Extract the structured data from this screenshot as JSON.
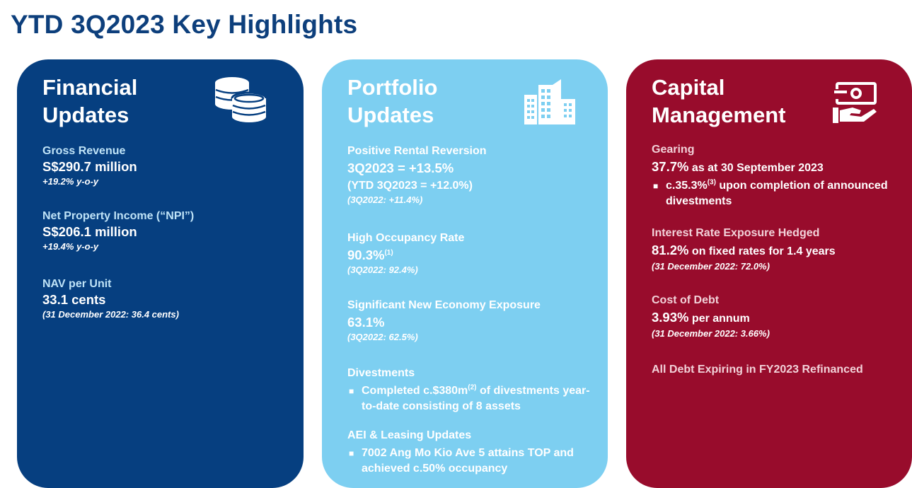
{
  "page_title": "YTD 3Q2023 Key Highlights",
  "financial": {
    "title": "Financial\nUpdates",
    "icon": "coins-icon",
    "color": "#063f80",
    "gross_revenue": {
      "label": "Gross Revenue",
      "value": "S$290.7 million",
      "note": "+19.2% y-o-y"
    },
    "npi": {
      "label": "Net Property Income (“NPI”)",
      "value": "S$206.1 million",
      "note": "+19.4% y-o-y"
    },
    "nav": {
      "label": "NAV per Unit",
      "value": "33.1 cents",
      "note": "(31 December 2022: 36.4 cents)"
    }
  },
  "portfolio": {
    "title": "Portfolio\nUpdates",
    "icon": "buildings-icon",
    "color": "#7dcff1",
    "rental": {
      "label": "Positive Rental Reversion",
      "value": "3Q2023 = +13.5%",
      "value2": "(YTD 3Q2023 = +12.0%)",
      "note": "(3Q2022: +11.4%)"
    },
    "occupancy": {
      "label": "High Occupancy Rate",
      "value": "90.3%",
      "sup": "(1)",
      "note": "(3Q2022: 92.4%)"
    },
    "new_economy": {
      "label": "Significant New Economy Exposure",
      "value": "63.1%",
      "note": "(3Q2022: 62.5%)"
    },
    "divestments": {
      "label": "Divestments",
      "bullet_pre": "Completed c.$380m",
      "sup": "(2)",
      "bullet_post": " of divestments year-to-date consisting of 8 assets"
    },
    "aei": {
      "label": "AEI & Leasing Updates",
      "bullet": "7002 Ang Mo Kio Ave 5 attains TOP and achieved c.50% occupancy"
    }
  },
  "capital": {
    "title": "Capital\nManagement",
    "icon": "cash-hand-icon",
    "color": "#980c2c",
    "gearing": {
      "label": "Gearing",
      "value": "37.7%",
      "value_rest": " as at 30 September 2023",
      "bullet_pre": "c.35.3%",
      "sup": "(3)",
      "bullet_post": " upon completion of announced divestments"
    },
    "hedged": {
      "label": "Interest Rate Exposure Hedged",
      "value": "81.2%",
      "value_rest": " on fixed rates for 1.4 years",
      "note": "(31 December 2022: 72.0%)"
    },
    "cost_debt": {
      "label": "Cost of Debt",
      "value": "3.93%",
      "value_rest": " per annum",
      "note": "(31 December 2022: 3.66%)"
    },
    "refinanced": {
      "label": "All Debt Expiring in FY2023 Refinanced"
    }
  }
}
